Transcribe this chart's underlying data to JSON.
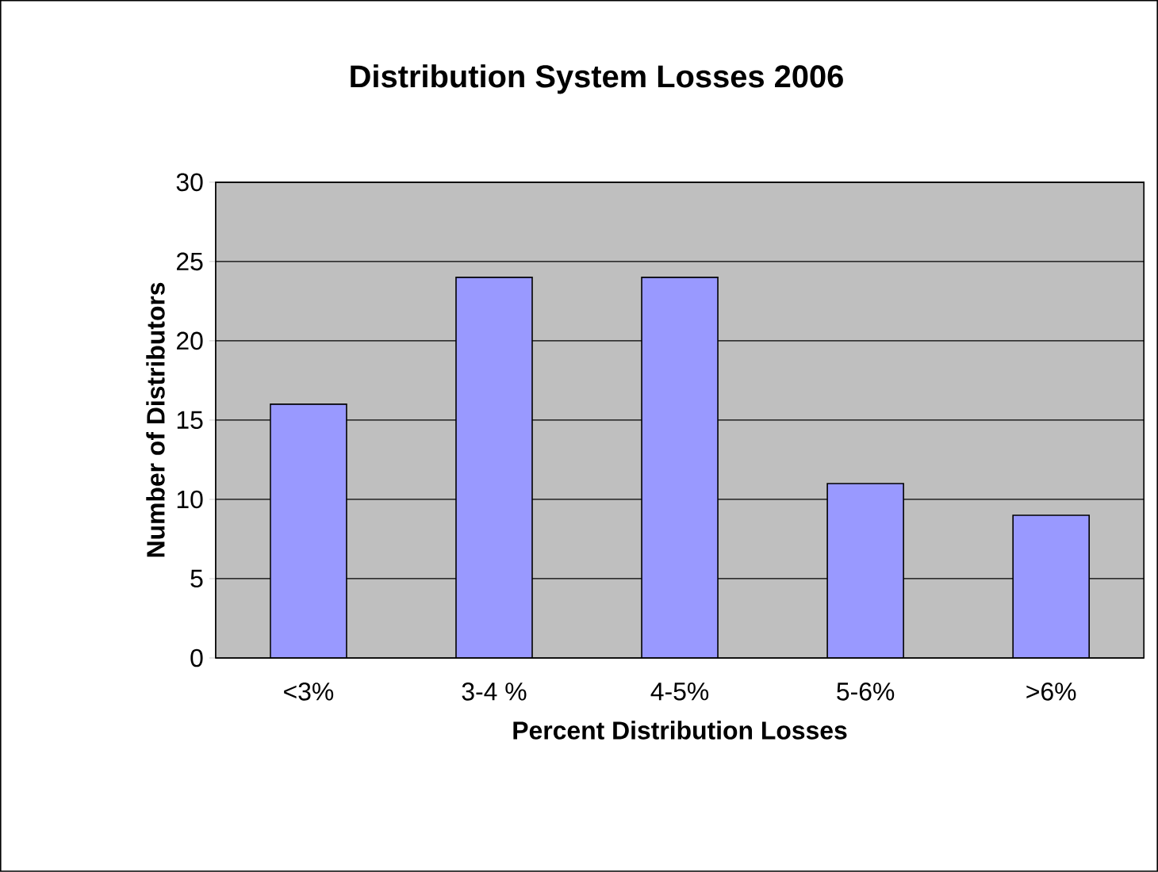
{
  "chart_data": {
    "type": "bar",
    "title": "Distribution System Losses 2006",
    "xlabel": "Percent Distribution Losses",
    "ylabel": "Number of Distributors",
    "categories": [
      "<3%",
      "3-4 %",
      "4-5%",
      "5-6%",
      ">6%"
    ],
    "values": [
      16,
      24,
      24,
      11,
      9
    ],
    "color": "#9999ff",
    "ylim": [
      0,
      30
    ],
    "yticks": [
      0,
      5,
      10,
      15,
      20,
      25,
      30
    ],
    "grid": "y"
  }
}
